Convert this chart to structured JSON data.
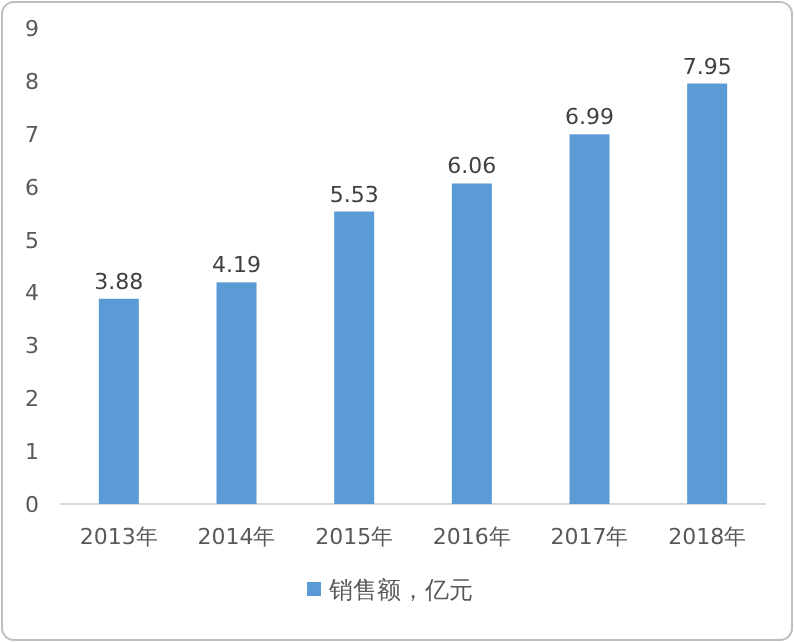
{
  "chart_data": {
    "type": "bar",
    "categories": [
      "2013年",
      "2014年",
      "2015年",
      "2016年",
      "2017年",
      "2018年"
    ],
    "series": [
      {
        "name": "销售额，亿元",
        "color": "#5b9bd5",
        "values": [
          3.88,
          4.19,
          5.53,
          6.06,
          6.99,
          7.95
        ]
      }
    ],
    "ylim": [
      0,
      9
    ],
    "yticks": [
      0,
      1,
      2,
      3,
      4,
      5,
      6,
      7,
      8,
      9
    ],
    "data_labels": true,
    "legend": "bottom"
  }
}
